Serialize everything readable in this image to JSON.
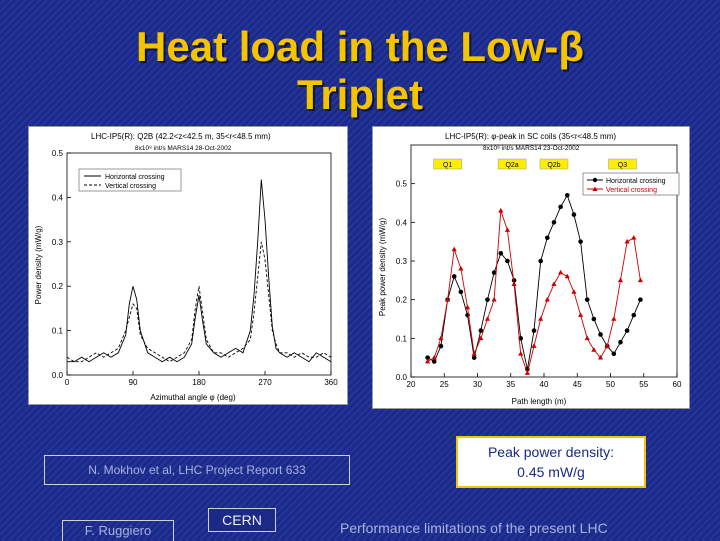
{
  "slide": {
    "title_line1": "Heat load in the Low-β",
    "title_line2": "Triplet",
    "reference": "N. Mokhov et al, LHC Project Report 633",
    "peak_line1": "Peak power density:",
    "peak_line2": "0.45 mW/g",
    "footer_author": "F. Ruggiero",
    "footer_cern": "CERN",
    "footer_topic": "Performance limitations of the present LHC",
    "accent_color": "#f4c400",
    "background_color": "#1a2a86"
  },
  "chart_data": [
    {
      "type": "line",
      "title": "LHC-IP5(R): Q2B (42.2<z<42.5 m, 35<r<48.5 mm)",
      "subtitle": "8x10⁸ int/s   MARS14   28-Oct-2002",
      "xlabel": "Azimuthal angle φ (deg)",
      "ylabel": "Power density (mW/g)",
      "xlim": [
        0,
        360
      ],
      "ylim": [
        0,
        0.5
      ],
      "xticks": [
        0,
        90,
        180,
        270,
        360
      ],
      "yticks": [
        0,
        0.1,
        0.2,
        0.3,
        0.4,
        0.5
      ],
      "xtick_labels": [
        "0",
        "90",
        "180",
        "270",
        "360"
      ],
      "ytick_labels": [
        "0.0",
        "0.1",
        "0.2",
        "0.3",
        "0.4",
        "0.5"
      ],
      "legend_position": "top-left",
      "series": [
        {
          "name": "Horizontal crossing",
          "style": "solid",
          "x": [
            0,
            10,
            20,
            30,
            40,
            50,
            60,
            70,
            80,
            85,
            90,
            95,
            100,
            110,
            120,
            130,
            140,
            150,
            160,
            170,
            175,
            180,
            185,
            190,
            200,
            210,
            220,
            230,
            240,
            250,
            255,
            260,
            265,
            270,
            275,
            280,
            285,
            290,
            300,
            310,
            320,
            330,
            340,
            350,
            360
          ],
          "y": [
            0.03,
            0.03,
            0.04,
            0.03,
            0.04,
            0.05,
            0.04,
            0.05,
            0.09,
            0.16,
            0.2,
            0.17,
            0.1,
            0.05,
            0.04,
            0.03,
            0.04,
            0.03,
            0.04,
            0.07,
            0.13,
            0.18,
            0.12,
            0.07,
            0.05,
            0.04,
            0.05,
            0.06,
            0.05,
            0.1,
            0.18,
            0.3,
            0.44,
            0.35,
            0.22,
            0.11,
            0.06,
            0.05,
            0.04,
            0.05,
            0.04,
            0.03,
            0.05,
            0.04,
            0.03
          ]
        },
        {
          "name": "Vertical crossing",
          "style": "dashed",
          "x": [
            0,
            10,
            20,
            30,
            40,
            50,
            60,
            70,
            80,
            85,
            90,
            95,
            100,
            110,
            120,
            130,
            140,
            150,
            160,
            170,
            175,
            180,
            185,
            190,
            200,
            210,
            220,
            230,
            240,
            250,
            255,
            260,
            265,
            270,
            275,
            280,
            285,
            290,
            300,
            310,
            320,
            330,
            340,
            350,
            360
          ],
          "y": [
            0.04,
            0.03,
            0.03,
            0.04,
            0.05,
            0.04,
            0.05,
            0.06,
            0.1,
            0.13,
            0.16,
            0.15,
            0.09,
            0.06,
            0.05,
            0.04,
            0.03,
            0.04,
            0.05,
            0.08,
            0.15,
            0.2,
            0.14,
            0.08,
            0.05,
            0.05,
            0.04,
            0.05,
            0.06,
            0.08,
            0.14,
            0.22,
            0.3,
            0.26,
            0.18,
            0.1,
            0.07,
            0.05,
            0.05,
            0.04,
            0.05,
            0.04,
            0.04,
            0.05,
            0.04
          ]
        }
      ]
    },
    {
      "type": "line",
      "title": "LHC-IP5(R): φ-peak in SC coils (35<r<48.5 mm)",
      "subtitle": "8x10⁸ int/s   MARS14   23-Oct-2002",
      "xlabel": "Path length (m)",
      "ylabel": "Peak power density (mW/g)",
      "xlim": [
        20,
        60
      ],
      "ylim": [
        0,
        0.6
      ],
      "xticks": [
        20,
        25,
        30,
        35,
        40,
        45,
        50,
        55,
        60
      ],
      "yticks": [
        0,
        0.1,
        0.2,
        0.3,
        0.4,
        0.5
      ],
      "xtick_labels": [
        "20",
        "25",
        "30",
        "35",
        "40",
        "45",
        "50",
        "55",
        "60"
      ],
      "ytick_labels": [
        "0.0",
        "0.1",
        "0.2",
        "0.3",
        "0.4",
        "0.5"
      ],
      "legend_position": "top-right",
      "segment_labels": [
        {
          "text": "Q1",
          "x": 25.5
        },
        {
          "text": "Q2a",
          "x": 35.2
        },
        {
          "text": "Q2b",
          "x": 41.5
        },
        {
          "text": "Q3",
          "x": 51.8
        }
      ],
      "series": [
        {
          "name": "Horizontal crossing",
          "marker": "circle",
          "color": "#000000",
          "x": [
            22.5,
            23.5,
            24.5,
            25.5,
            26.5,
            27.5,
            28.5,
            29.5,
            30.5,
            31.5,
            32.5,
            33.5,
            34.5,
            35.5,
            36.5,
            37.5,
            38.5,
            39.5,
            40.5,
            41.5,
            42.5,
            43.5,
            44.5,
            45.5,
            46.5,
            47.5,
            48.5,
            49.5,
            50.5,
            51.5,
            52.5,
            53.5,
            54.5
          ],
          "y": [
            0.05,
            0.04,
            0.08,
            0.2,
            0.26,
            0.22,
            0.16,
            0.05,
            0.12,
            0.2,
            0.27,
            0.32,
            0.3,
            0.25,
            0.1,
            0.02,
            0.12,
            0.3,
            0.36,
            0.4,
            0.44,
            0.47,
            0.42,
            0.35,
            0.2,
            0.15,
            0.11,
            0.08,
            0.06,
            0.09,
            0.12,
            0.16,
            0.2
          ]
        },
        {
          "name": "Vertical crossing",
          "marker": "triangle",
          "color": "#cc0000",
          "x": [
            22.5,
            23.5,
            24.5,
            25.5,
            26.5,
            27.5,
            28.5,
            29.5,
            30.5,
            31.5,
            32.5,
            33.5,
            34.5,
            35.5,
            36.5,
            37.5,
            38.5,
            39.5,
            40.5,
            41.5,
            42.5,
            43.5,
            44.5,
            45.5,
            46.5,
            47.5,
            48.5,
            49.5,
            50.5,
            51.5,
            52.5,
            53.5,
            54.5
          ],
          "y": [
            0.04,
            0.05,
            0.1,
            0.2,
            0.33,
            0.28,
            0.18,
            0.06,
            0.1,
            0.15,
            0.2,
            0.43,
            0.38,
            0.24,
            0.06,
            0.01,
            0.08,
            0.15,
            0.2,
            0.24,
            0.27,
            0.26,
            0.22,
            0.16,
            0.1,
            0.07,
            0.05,
            0.08,
            0.15,
            0.25,
            0.35,
            0.36,
            0.25
          ]
        }
      ]
    }
  ]
}
